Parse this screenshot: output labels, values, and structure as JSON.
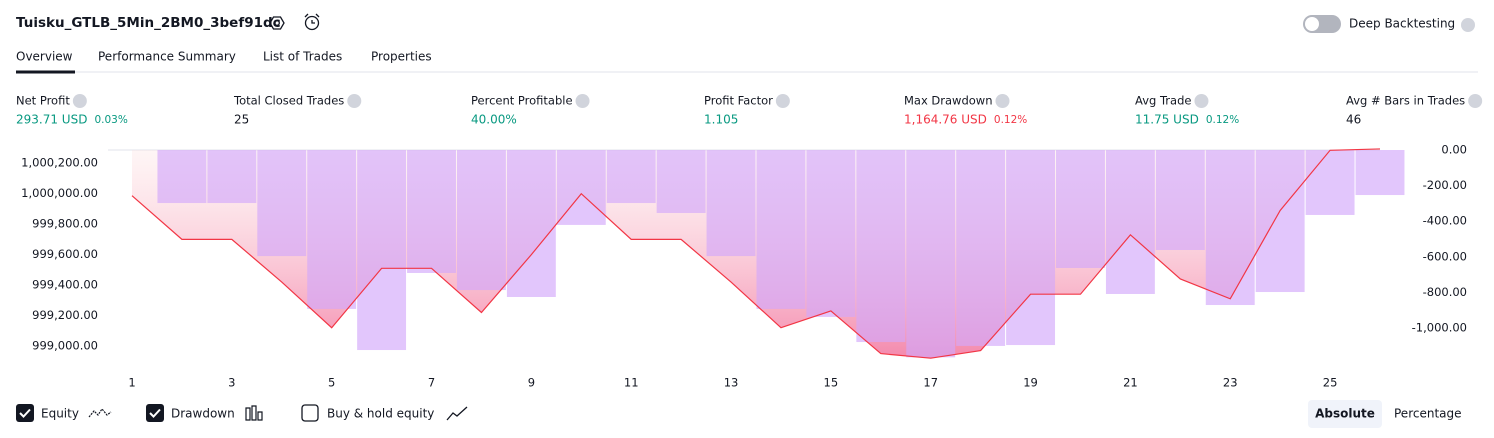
{
  "header": {
    "title": "Tuisku_GTLB_5Min_2BM0_3bef91dc",
    "deep_backtesting": "Deep Backtesting"
  },
  "tabs": [
    "Overview",
    "Performance Summary",
    "List of Trades",
    "Properties"
  ],
  "metrics": [
    {
      "label": "Net Profit",
      "value": "293.71 USD",
      "percent": "0.03%",
      "tone": "positive"
    },
    {
      "label": "Total Closed Trades",
      "value": "25",
      "tone": "neutral"
    },
    {
      "label": "Percent Profitable",
      "value": "40.00%",
      "tone": "positive"
    },
    {
      "label": "Profit Factor",
      "value": "1.105",
      "tone": "positive"
    },
    {
      "label": "Max Drawdown",
      "value": "1,164.76 USD",
      "percent": "0.12%",
      "tone": "negative"
    },
    {
      "label": "Avg Trade",
      "value": "11.75 USD",
      "percent": "0.12%",
      "tone": "positive"
    },
    {
      "label": "Avg # Bars in Trades",
      "value": "46",
      "tone": "neutral"
    }
  ],
  "chart_data": {
    "type": "equity-drawdown",
    "x": [
      1,
      2,
      3,
      4,
      5,
      6,
      7,
      8,
      9,
      10,
      11,
      12,
      13,
      14,
      15,
      16,
      17,
      18,
      19,
      20,
      21,
      22,
      23,
      24,
      25,
      26
    ],
    "xticks": [
      1,
      3,
      5,
      7,
      9,
      11,
      13,
      15,
      17,
      19,
      21,
      23,
      25
    ],
    "xlim": [
      0.5,
      26.5
    ],
    "ylim": [
      998908,
      1000300
    ],
    "yticks": [
      {
        "value": 1000200,
        "label": "1,000,200.00"
      },
      {
        "value": 1000000,
        "label": "1,000,000.00"
      },
      {
        "value": 999800,
        "label": "999,800.00"
      },
      {
        "value": 999600,
        "label": "999,600.00"
      },
      {
        "value": 999400,
        "label": "999,400.00"
      },
      {
        "value": 999200,
        "label": "999,200.00"
      },
      {
        "value": 999000,
        "label": "999,000.00"
      }
    ],
    "y2lim": [
      -1180,
      0
    ],
    "y2ticks": [
      {
        "value": 0,
        "label": "0.00"
      },
      {
        "value": -200,
        "label": "-200.00"
      },
      {
        "value": -400,
        "label": "-400.00"
      },
      {
        "value": -600,
        "label": "-600.00"
      },
      {
        "value": -800,
        "label": "-800.00"
      },
      {
        "value": -1000,
        "label": "-1,000.00"
      }
    ],
    "series": [
      {
        "name": "Equity",
        "color": "#f23645",
        "values": [
          999987,
          999700,
          999700,
          999420,
          999120,
          999510,
          999510,
          999220,
          999600,
          1000000,
          999700,
          999700,
          999420,
          999120,
          999230,
          998950,
          998920,
          998970,
          999340,
          999340,
          999730,
          999440,
          999310,
          999890,
          1000285,
          1000294
        ]
      },
      {
        "name": "Drawdown",
        "color": "#d3a8fb",
        "axis": "y2",
        "values": [
          0,
          -298,
          -298,
          -596,
          -893,
          -1124,
          -691,
          -787,
          -826,
          -421,
          -298,
          -354,
          -596,
          -893,
          -938,
          -1079,
          -1165,
          -1101,
          -1096,
          -663,
          -809,
          -562,
          -871,
          -798,
          -365,
          -253
        ]
      }
    ]
  },
  "legend_extra": "Buy & hold equity",
  "modes": [
    "Absolute",
    "Percentage"
  ]
}
